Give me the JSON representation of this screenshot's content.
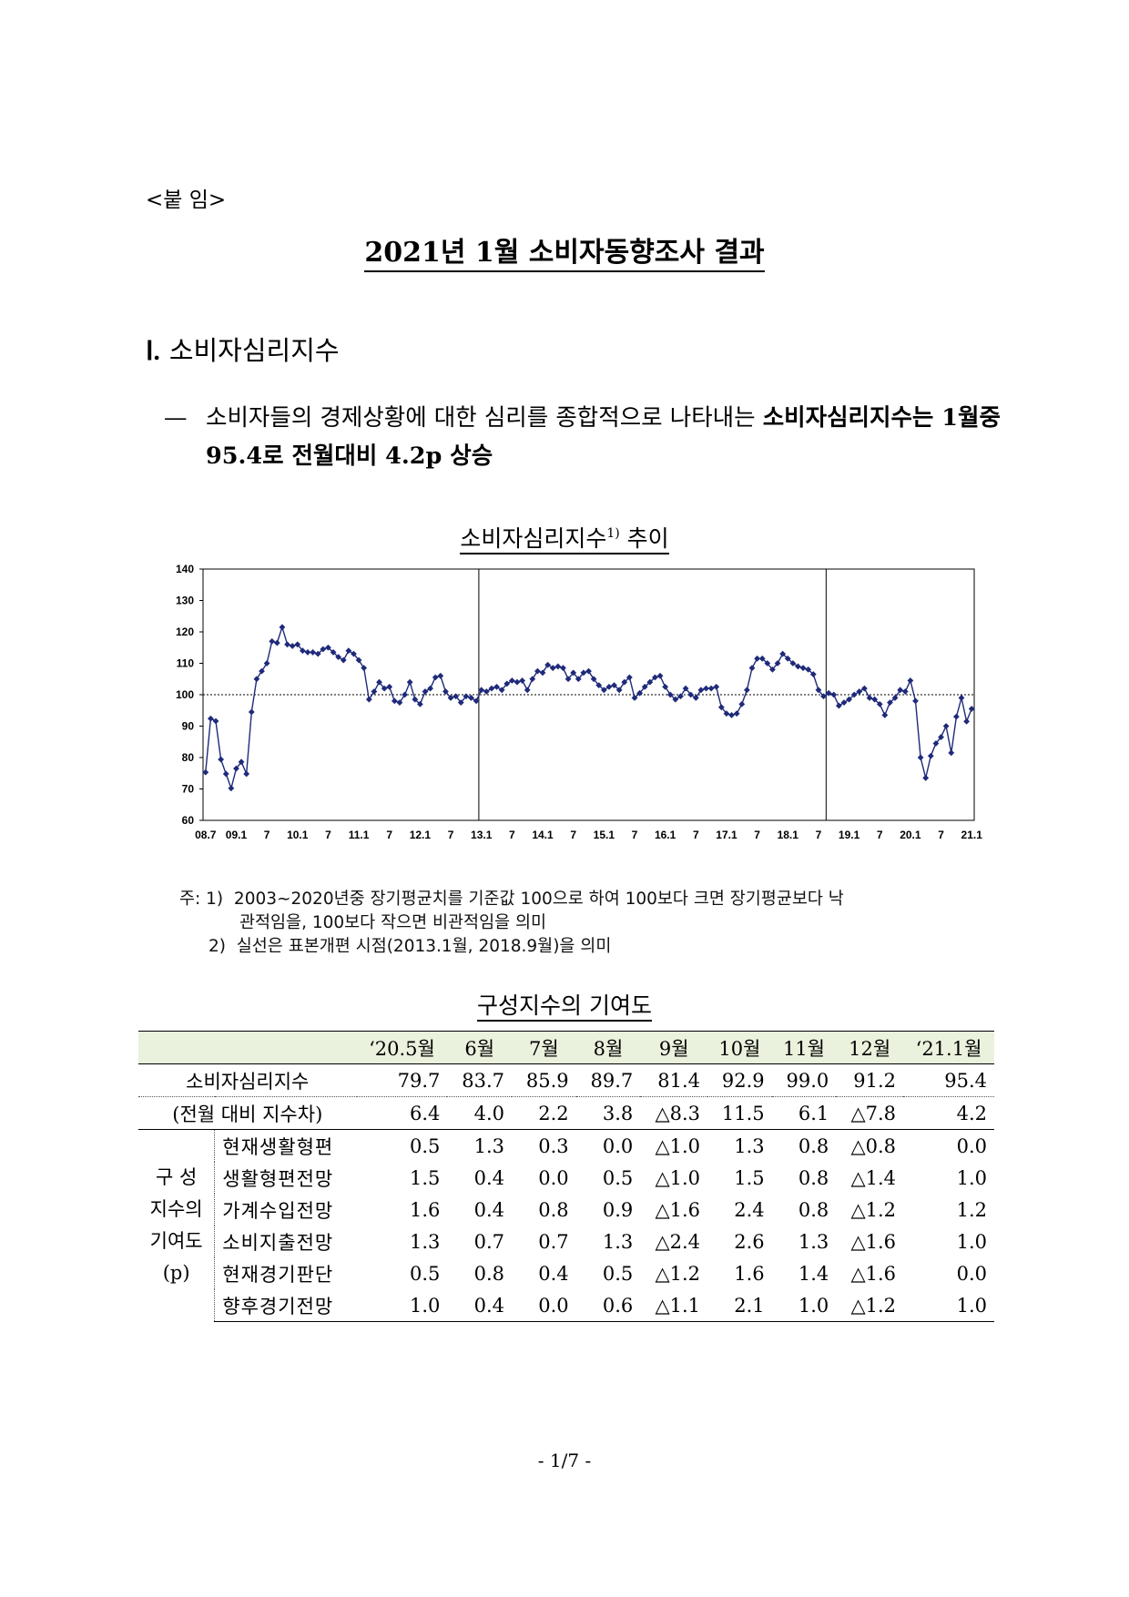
{
  "attachment_label": "<붙 임>",
  "title": "2021년 1월 소비자동향조사 결과",
  "section": {
    "numeral": "Ⅰ.",
    "heading": "소비자심리지수"
  },
  "bullet": {
    "dash": "—",
    "text_normal": "소비자들의 경제상황에 대한 심리를 종합적으로 나타내는 ",
    "text_bold": "소비자심리지수는 1월중 95.4로 전월대비 4.2p 상승"
  },
  "chart_title": {
    "text": "소비자심리지수",
    "sup": "1)",
    "suffix": " 추이"
  },
  "chart_data": {
    "type": "line",
    "y_ticks": [
      140,
      130,
      120,
      110,
      100,
      90,
      80,
      70,
      60
    ],
    "ylim": [
      60,
      140
    ],
    "x_tick_labels": [
      "08.7",
      "09.1",
      "7",
      "10.1",
      "7",
      "11.1",
      "7",
      "12.1",
      "7",
      "13.1",
      "7",
      "14.1",
      "7",
      "15.1",
      "7",
      "16.1",
      "7",
      "17.1",
      "7",
      "18.1",
      "7",
      "19.1",
      "7",
      "20.1",
      "7",
      "21.1"
    ],
    "x_tick_month_index": [
      0,
      6,
      12,
      18,
      24,
      30,
      36,
      42,
      48,
      54,
      60,
      66,
      72,
      78,
      84,
      90,
      96,
      102,
      108,
      114,
      120,
      126,
      132,
      138,
      144,
      150
    ],
    "reference_line": 100,
    "break_lines_month_index": [
      54,
      122
    ],
    "marker": "diamond",
    "color": "#1f2a7a",
    "series": [
      {
        "values": [
          75.3,
          92.4,
          91.6,
          79.4,
          74.8,
          70.2,
          76.5,
          78.6,
          74.8,
          94.5,
          105.0,
          107.5,
          110.0,
          117.0,
          116.5,
          121.5,
          116.0,
          115.5,
          116.0,
          114.0,
          113.5,
          113.5,
          113.0,
          114.5,
          115.0,
          113.5,
          112.0,
          111.0,
          114.0,
          113.0,
          111.0,
          108.5,
          98.5,
          101.0,
          104.0,
          102.0,
          102.5,
          98.0,
          97.5,
          100.0,
          104.0,
          98.5,
          97.0,
          101.0,
          102.0,
          105.5,
          106.0,
          101.0,
          99.0,
          99.5,
          97.5,
          99.5,
          99.0,
          98.0,
          101.5,
          101.0,
          102.0,
          102.5,
          101.5,
          103.5,
          104.5,
          104.0,
          104.5,
          101.5,
          105.0,
          107.5,
          107.0,
          109.5,
          108.5,
          109.0,
          108.5,
          105.0,
          107.0,
          105.0,
          107.0,
          107.5,
          105.0,
          103.0,
          101.5,
          102.5,
          103.0,
          101.5,
          104.0,
          105.5,
          99.0,
          100.5,
          102.5,
          104.0,
          105.5,
          106.0,
          102.5,
          100.0,
          98.5,
          99.5,
          102.0,
          100.0,
          99.0,
          101.5,
          102.0,
          102.0,
          102.5,
          96.0,
          94.0,
          93.5,
          94.0,
          97.0,
          101.5,
          108.5,
          111.5,
          111.5,
          110.0,
          108.0,
          110.0,
          113.0,
          111.5,
          110.0,
          109.0,
          108.5,
          108.0,
          106.5,
          101.5,
          99.5,
          100.5,
          100.0,
          96.5,
          97.5,
          98.5,
          100.0,
          101.0,
          102.0,
          99.0,
          98.5,
          97.0,
          93.5,
          97.5,
          99.0,
          101.5,
          101.0,
          104.5,
          98.0,
          80.0,
          73.5,
          80.5,
          84.5,
          86.5,
          90.0,
          81.5,
          93.0,
          99.0,
          91.5,
          95.5
        ]
      }
    ]
  },
  "notes": {
    "prefix": "주:",
    "n1_num": "1)",
    "n1_line1": "2003~2020년중 장기평균치를 기준값 100으로 하여 100보다 크면 장기평균보다 낙",
    "n1_line2": "관적임을, 100보다 작으면 비관적임을 의미",
    "n2_num": "2)",
    "n2_text": "실선은 표본개편 시점(2013.1월, 2018.9월)을 의미"
  },
  "table_title": "구성지수의 기여도",
  "table": {
    "columns": [
      "‘20.5월",
      "6월",
      "7월",
      "8월",
      "9월",
      "10월",
      "11월",
      "12월",
      "‘21.1월"
    ],
    "csi_label": "소비자심리지수",
    "csi_values": [
      "79.7",
      "83.7",
      "85.9",
      "89.7",
      "81.4",
      "92.9",
      "99.0",
      "91.2",
      "95.4"
    ],
    "diff_label": "(전월 대비 지수차)",
    "diff_values": [
      "6.4",
      "4.0",
      "2.2",
      "3.8",
      "△8.3",
      "11.5",
      "6.1",
      "△7.8",
      "4.2"
    ],
    "group_label": [
      "구 성",
      "지수의",
      "기여도",
      "(p)"
    ],
    "rows": [
      {
        "label": "현재생활형편",
        "values": [
          "0.5",
          "1.3",
          "0.3",
          "0.0",
          "△1.0",
          "1.3",
          "0.8",
          "△0.8",
          "0.0"
        ]
      },
      {
        "label": "생활형편전망",
        "values": [
          "1.5",
          "0.4",
          "0.0",
          "0.5",
          "△1.0",
          "1.5",
          "0.8",
          "△1.4",
          "1.0"
        ]
      },
      {
        "label": "가계수입전망",
        "values": [
          "1.6",
          "0.4",
          "0.8",
          "0.9",
          "△1.6",
          "2.4",
          "0.8",
          "△1.2",
          "1.2"
        ]
      },
      {
        "label": "소비지출전망",
        "values": [
          "1.3",
          "0.7",
          "0.7",
          "1.3",
          "△2.4",
          "2.6",
          "1.3",
          "△1.6",
          "1.0"
        ]
      },
      {
        "label": "현재경기판단",
        "values": [
          "0.5",
          "0.8",
          "0.4",
          "0.5",
          "△1.2",
          "1.6",
          "1.4",
          "△1.6",
          "0.0"
        ]
      },
      {
        "label": "향후경기전망",
        "values": [
          "1.0",
          "0.4",
          "0.0",
          "0.6",
          "△1.1",
          "2.1",
          "1.0",
          "△1.2",
          "1.0"
        ]
      }
    ]
  },
  "page_number": "- 1/7 -"
}
